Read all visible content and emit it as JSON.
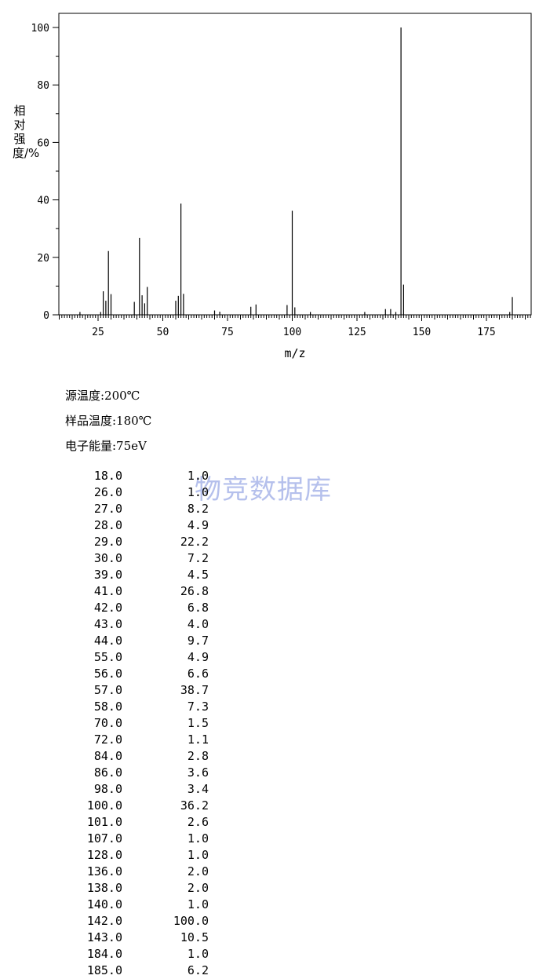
{
  "chart_data": {
    "type": "bar",
    "xlabel": "m/z",
    "ylabel": "相对强度/%",
    "xlim": [
      10,
      192
    ],
    "ylim": [
      0,
      100
    ],
    "xticks": [
      25,
      50,
      75,
      100,
      125,
      150,
      175
    ],
    "yticks": [
      0,
      20,
      40,
      60,
      80,
      100
    ],
    "grid": false,
    "x": [
      18,
      26,
      27,
      28,
      29,
      30,
      39,
      41,
      42,
      43,
      44,
      55,
      56,
      57,
      58,
      70,
      72,
      84,
      86,
      98,
      100,
      101,
      107,
      128,
      136,
      138,
      140,
      142,
      143,
      184,
      185
    ],
    "values": [
      1.0,
      1.0,
      8.2,
      4.9,
      22.2,
      7.2,
      4.5,
      26.8,
      6.8,
      4.0,
      9.7,
      4.9,
      6.6,
      38.7,
      7.3,
      1.5,
      1.1,
      2.8,
      3.6,
      3.4,
      36.2,
      2.6,
      1.0,
      1.0,
      2.0,
      2.0,
      1.0,
      100.0,
      10.5,
      1.0,
      6.2
    ]
  },
  "conditions": [
    "源温度:200℃",
    "样品温度:180℃",
    "电子能量:75eV"
  ],
  "watermark": "物竞数据库",
  "peaks": [
    {
      "mz": "18.0",
      "intensity": "1.0"
    },
    {
      "mz": "26.0",
      "intensity": "1.0"
    },
    {
      "mz": "27.0",
      "intensity": "8.2"
    },
    {
      "mz": "28.0",
      "intensity": "4.9"
    },
    {
      "mz": "29.0",
      "intensity": "22.2"
    },
    {
      "mz": "30.0",
      "intensity": "7.2"
    },
    {
      "mz": "39.0",
      "intensity": "4.5"
    },
    {
      "mz": "41.0",
      "intensity": "26.8"
    },
    {
      "mz": "42.0",
      "intensity": "6.8"
    },
    {
      "mz": "43.0",
      "intensity": "4.0"
    },
    {
      "mz": "44.0",
      "intensity": "9.7"
    },
    {
      "mz": "55.0",
      "intensity": "4.9"
    },
    {
      "mz": "56.0",
      "intensity": "6.6"
    },
    {
      "mz": "57.0",
      "intensity": "38.7"
    },
    {
      "mz": "58.0",
      "intensity": "7.3"
    },
    {
      "mz": "70.0",
      "intensity": "1.5"
    },
    {
      "mz": "72.0",
      "intensity": "1.1"
    },
    {
      "mz": "84.0",
      "intensity": "2.8"
    },
    {
      "mz": "86.0",
      "intensity": "3.6"
    },
    {
      "mz": "98.0",
      "intensity": "3.4"
    },
    {
      "mz": "100.0",
      "intensity": "36.2"
    },
    {
      "mz": "101.0",
      "intensity": "2.6"
    },
    {
      "mz": "107.0",
      "intensity": "1.0"
    },
    {
      "mz": "128.0",
      "intensity": "1.0"
    },
    {
      "mz": "136.0",
      "intensity": "2.0"
    },
    {
      "mz": "138.0",
      "intensity": "2.0"
    },
    {
      "mz": "140.0",
      "intensity": "1.0"
    },
    {
      "mz": "142.0",
      "intensity": "100.0"
    },
    {
      "mz": "143.0",
      "intensity": "10.5"
    },
    {
      "mz": "184.0",
      "intensity": "1.0"
    },
    {
      "mz": "185.0",
      "intensity": "6.2"
    }
  ]
}
